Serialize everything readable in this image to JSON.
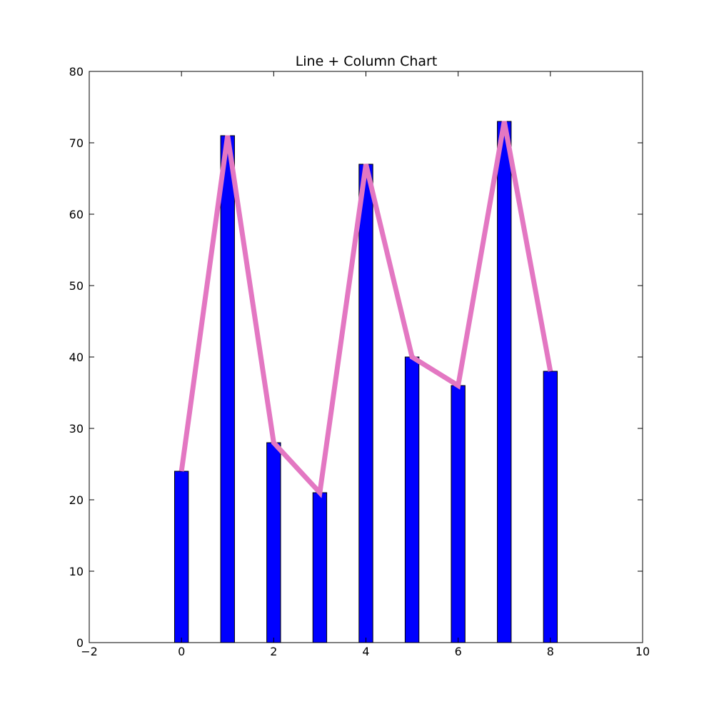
{
  "chart_data": {
    "type": "bar+line",
    "title": "Line + Column Chart",
    "xlabel": "",
    "ylabel": "",
    "xlim": [
      -2,
      10
    ],
    "ylim": [
      0,
      80
    ],
    "x_ticks": [
      -2,
      0,
      2,
      4,
      6,
      8,
      10
    ],
    "y_ticks": [
      0,
      10,
      20,
      30,
      40,
      50,
      60,
      70,
      80
    ],
    "x_tick_labels": [
      "−2",
      "0",
      "2",
      "4",
      "6",
      "8",
      "10"
    ],
    "y_tick_labels": [
      "0",
      "10",
      "20",
      "30",
      "40",
      "50",
      "60",
      "70",
      "80"
    ],
    "grid": false,
    "legend": "none",
    "x": [
      0,
      1,
      2,
      3,
      4,
      5,
      6,
      7,
      8
    ],
    "values": [
      24,
      71,
      28,
      21,
      67,
      40,
      36,
      73,
      38
    ],
    "bar_width": 0.3,
    "bar_color": "#0000ff",
    "line_color": "#e377c2"
  }
}
